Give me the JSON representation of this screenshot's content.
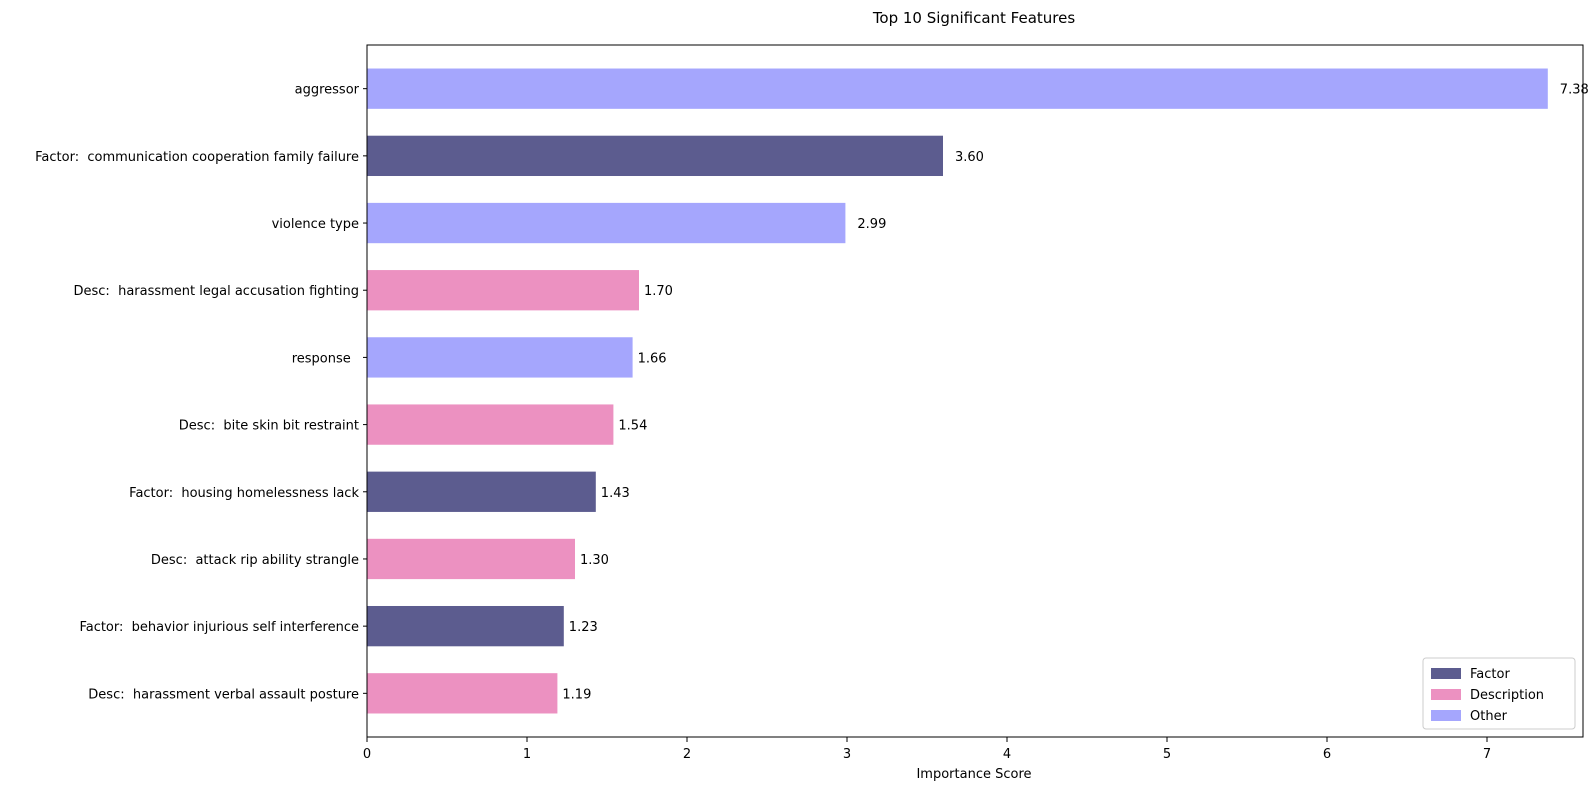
{
  "chart_data": {
    "type": "bar",
    "orientation": "horizontal",
    "title": "Top 10 Significant Features",
    "xlabel": "Importance Score",
    "ylabel": "",
    "xlim": [
      0,
      7.6
    ],
    "x_ticks": [
      "0",
      "1",
      "2",
      "3",
      "4",
      "5",
      "6",
      "7"
    ],
    "grid": false,
    "legend_position": "bottom-right",
    "legend": [
      {
        "name": "Factor",
        "color": "#5c5c8f"
      },
      {
        "name": "Description",
        "color": "#ec91c1"
      },
      {
        "name": "Other",
        "color": "#a5a6fd"
      }
    ],
    "bars": [
      {
        "label": "aggressor",
        "value": 7.38,
        "value_label": "7.38",
        "group": "Other"
      },
      {
        "label": "Factor:  communication cooperation family failure",
        "value": 3.6,
        "value_label": "3.60",
        "group": "Factor"
      },
      {
        "label": "violence type",
        "value": 2.99,
        "value_label": "2.99",
        "group": "Other"
      },
      {
        "label": "Desc:  harassment legal accusation fighting",
        "value": 1.7,
        "value_label": "1.70",
        "group": "Description"
      },
      {
        "label": "response  ",
        "value": 1.66,
        "value_label": "1.66",
        "group": "Other"
      },
      {
        "label": "Desc:  bite skin bit restraint",
        "value": 1.54,
        "value_label": "1.54",
        "group": "Description"
      },
      {
        "label": "Factor:  housing homelessness lack",
        "value": 1.43,
        "value_label": "1.43",
        "group": "Factor"
      },
      {
        "label": "Desc:  attack rip ability strangle",
        "value": 1.3,
        "value_label": "1.30",
        "group": "Description"
      },
      {
        "label": "Factor:  behavior injurious self interference",
        "value": 1.23,
        "value_label": "1.23",
        "group": "Factor"
      },
      {
        "label": "Desc:  harassment verbal assault posture",
        "value": 1.19,
        "value_label": "1.19",
        "group": "Description"
      }
    ]
  }
}
